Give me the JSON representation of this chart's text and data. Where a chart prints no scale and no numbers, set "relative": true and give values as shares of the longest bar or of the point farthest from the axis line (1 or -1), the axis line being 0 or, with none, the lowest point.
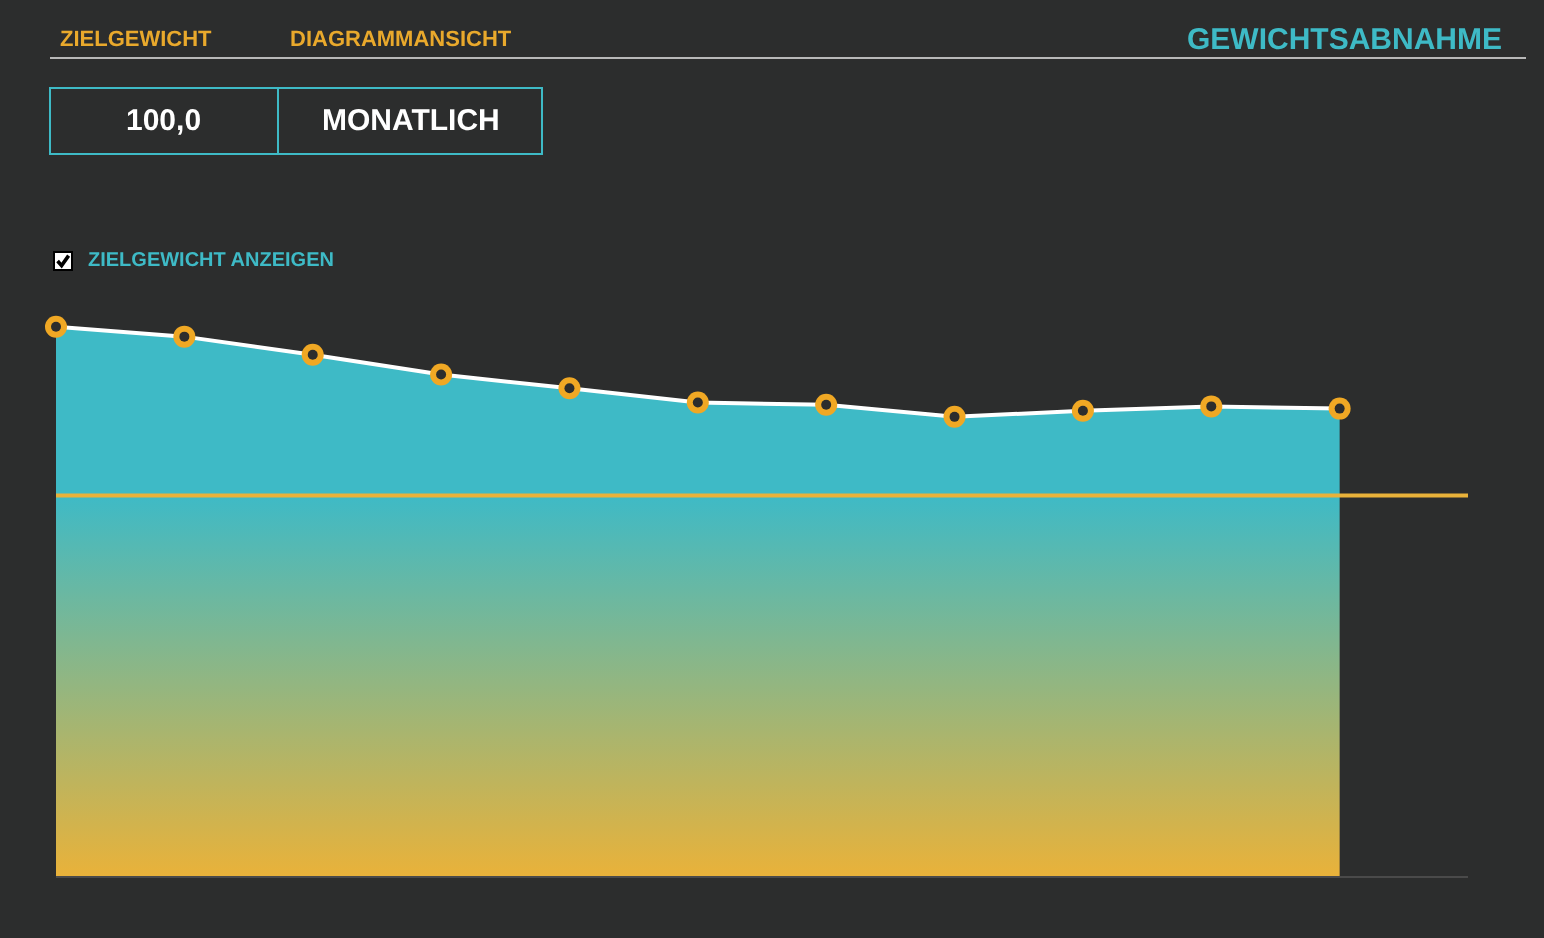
{
  "chart_data": {
    "type": "area",
    "title": "GEWICHTSABNAHME",
    "categories": [
      null,
      null,
      null,
      null,
      null,
      null,
      null,
      null,
      null,
      null,
      null,
      null
    ],
    "series": [
      {
        "color": "#3ebac6",
        "colors": [
          "#f0a824",
          "#f0a824",
          "#f0a824",
          "#f0a824",
          "#f0a824",
          "#f0a824",
          "#f0a824",
          "#f0a824",
          "#f0a824",
          "#f0a824",
          "#f0a824",
          "#f0a824"
        ],
        "values": [
          1,
          0.982,
          0.949,
          0.913,
          0.888,
          0.862,
          0.858,
          0.836,
          0.847,
          0.855,
          0.851,
          null
        ]
      }
    ],
    "relative": true,
    "marker": "circle",
    "line_style": "solid",
    "ref_lines": [
      {
        "axis": "y",
        "value": 0.693,
        "color": "#e9b23a"
      }
    ],
    "annotations": [
      "ZIELGEWICHT",
      "DIAGRAMMANSICHT",
      "100,0",
      "MONATLICH",
      "ZIELGEWICHT ANZEIGEN"
    ]
  }
}
